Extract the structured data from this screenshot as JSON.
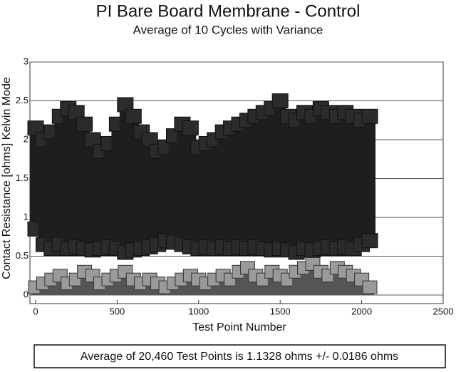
{
  "chart_data": {
    "type": "scatter",
    "title": "PI Bare Board Membrane - Control",
    "subtitle": "Average of 10 Cycles with Variance",
    "x_label": "Test Point Number",
    "y_label": "Contact Resistance [ohms] Kelvin Mode",
    "footnote": "Average of 20,460 Test Points is 1.1328 ohms +/- 0.0186 ohms",
    "xlim": [
      0,
      2500
    ],
    "xticks": [
      0,
      500,
      1000,
      1500,
      2000,
      2500
    ],
    "ylim": [
      0,
      3
    ],
    "yticks": [
      0,
      0.5,
      1,
      1.5,
      2,
      2.5,
      3
    ],
    "grid": true,
    "x": [
      0,
      50,
      100,
      150,
      200,
      250,
      300,
      350,
      400,
      450,
      500,
      550,
      600,
      650,
      700,
      750,
      800,
      850,
      900,
      950,
      1000,
      1050,
      1100,
      1150,
      1200,
      1250,
      1300,
      1350,
      1400,
      1450,
      1500,
      1550,
      1600,
      1650,
      1700,
      1750,
      1800,
      1850,
      1900,
      1950,
      2000,
      2050
    ],
    "series": [
      {
        "color": "#2b2b2b",
        "values": [
          2.15,
          2.0,
          2.1,
          2.3,
          2.4,
          2.35,
          2.2,
          2.0,
          1.85,
          1.95,
          2.2,
          2.45,
          2.3,
          2.1,
          2.0,
          1.85,
          1.9,
          2.05,
          2.2,
          2.15,
          1.9,
          1.95,
          2.0,
          2.1,
          2.15,
          2.2,
          2.25,
          2.3,
          2.35,
          2.4,
          2.5,
          2.3,
          2.25,
          2.35,
          2.3,
          2.4,
          2.35,
          2.3,
          2.35,
          2.3,
          2.25,
          2.3
        ]
      },
      {
        "color": "#2b2b2b",
        "values": [
          0.85,
          0.65,
          0.6,
          0.65,
          0.6,
          0.62,
          0.6,
          0.58,
          0.6,
          0.62,
          0.6,
          0.55,
          0.58,
          0.6,
          0.62,
          0.65,
          0.7,
          0.68,
          0.65,
          0.62,
          0.6,
          0.62,
          0.6,
          0.62,
          0.6,
          0.62,
          0.6,
          0.62,
          0.6,
          0.58,
          0.6,
          0.58,
          0.55,
          0.6,
          0.58,
          0.6,
          0.62,
          0.6,
          0.62,
          0.6,
          0.65,
          0.7
        ]
      },
      {
        "color": "#9a9a9a",
        "values": [
          0.1,
          0.15,
          0.2,
          0.25,
          0.15,
          0.2,
          0.3,
          0.25,
          0.15,
          0.2,
          0.25,
          0.3,
          0.2,
          0.15,
          0.2,
          0.15,
          0.1,
          0.15,
          0.2,
          0.25,
          0.2,
          0.15,
          0.2,
          0.25,
          0.2,
          0.3,
          0.35,
          0.25,
          0.2,
          0.3,
          0.25,
          0.2,
          0.3,
          0.35,
          0.4,
          0.3,
          0.25,
          0.35,
          0.3,
          0.25,
          0.2,
          0.1
        ]
      }
    ]
  }
}
